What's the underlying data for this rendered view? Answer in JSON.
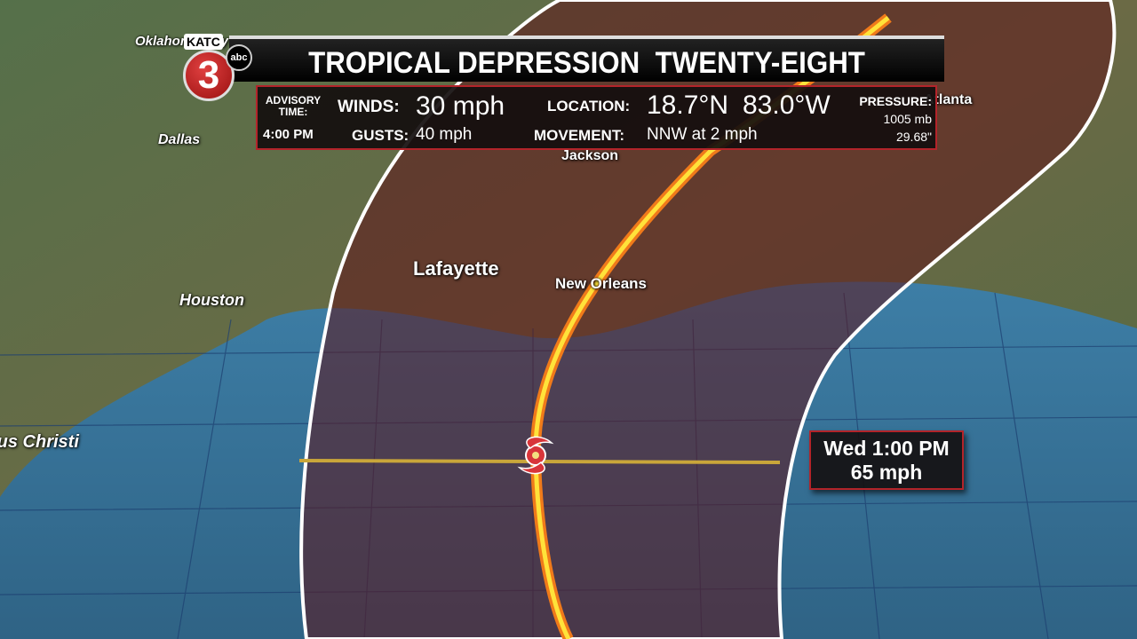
{
  "logo": {
    "station": "KATC",
    "network": "abc",
    "channel": "3"
  },
  "header": {
    "title": "TROPICAL DEPRESSION  TWENTY-EIGHT"
  },
  "advisory": {
    "time_label": "ADVISORY TIME:",
    "time": "4:00 PM",
    "winds_label": "WINDS:",
    "winds": "30 mph",
    "gusts_label": "GUSTS:",
    "gusts": "40 mph",
    "location_label": "LOCATION:",
    "latitude": "18.7°N",
    "longitude": "83.0°W",
    "movement_label": "MOVEMENT:",
    "movement": "NNW at 2 mph",
    "pressure_label": "PRESSURE:",
    "pressure_mb": "1005 mb",
    "pressure_in": "29.68\""
  },
  "cities": [
    "Oklahoma City",
    "Dallas",
    "Houston",
    "Corpus Christi",
    "Lafayette",
    "New Orleans",
    "Jackson",
    "Atlanta"
  ],
  "forecast_point": {
    "time": "Wed 1:00 PM",
    "wind": "65 mph"
  }
}
